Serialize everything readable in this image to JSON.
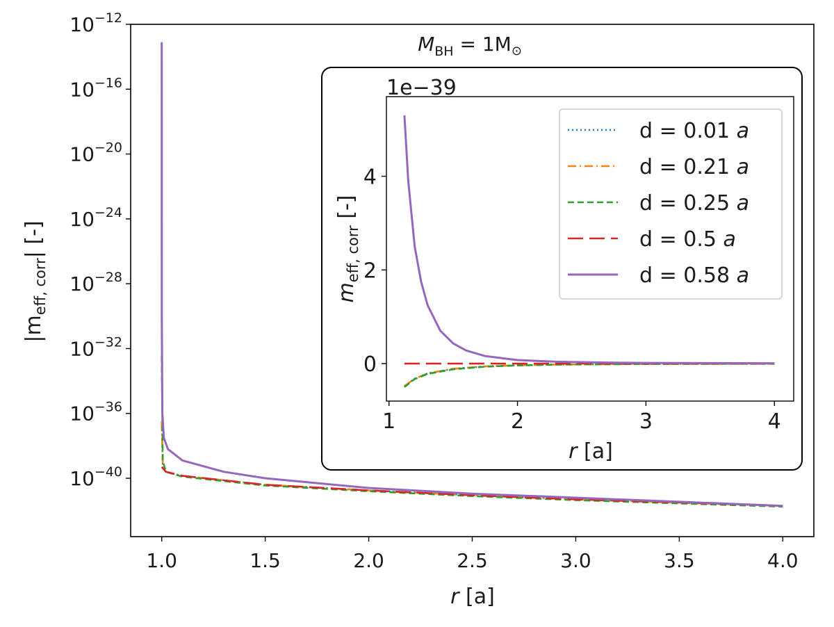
{
  "colors": {
    "blue": "#1f77b4",
    "orange": "#ff7f0e",
    "green": "#2ca02c",
    "red": "#d62728",
    "purple": "#9467bd",
    "axis": "#000000"
  },
  "chart_data": [
    {
      "id": "main",
      "type": "line",
      "title_prefix": "M",
      "title_sub": "BH",
      "title_rest": " = 1M",
      "title_sun": "⊙",
      "xlabel_var": "r",
      "xlabel_unit": " [a]",
      "ylabel_pre": "|m",
      "ylabel_sub": "eff, corr",
      "ylabel_post": "| [-]",
      "yscale": "log",
      "xlim": [
        0.85,
        4.15
      ],
      "ylim_log10": [
        -43.6,
        -12
      ],
      "xticks": [
        "1.0",
        "1.5",
        "2.0",
        "2.5",
        "3.0",
        "3.5",
        "4.0"
      ],
      "yticks": [
        {
          "base": "10",
          "exp": "−12",
          "log": -12
        },
        {
          "base": "10",
          "exp": "−16",
          "log": -16
        },
        {
          "base": "10",
          "exp": "−20",
          "log": -20
        },
        {
          "base": "10",
          "exp": "−24",
          "log": -24
        },
        {
          "base": "10",
          "exp": "−28",
          "log": -28
        },
        {
          "base": "10",
          "exp": "−32",
          "log": -32
        },
        {
          "base": "10",
          "exp": "−36",
          "log": -36
        },
        {
          "base": "10",
          "exp": "−40",
          "log": -40
        }
      ],
      "series": [
        {
          "name": "d = 0.01 a",
          "style": "dotted",
          "color": "#1f77b4",
          "x": [
            1.0,
            1.005,
            1.02,
            1.1,
            1.5,
            2.0,
            2.5,
            3.0,
            3.5,
            4.0
          ],
          "log10y": [
            -36.5,
            -39.2,
            -39.6,
            -39.85,
            -40.4,
            -40.75,
            -41.05,
            -41.3,
            -41.5,
            -41.7
          ]
        },
        {
          "name": "d = 0.21 a",
          "style": "dashdot",
          "color": "#ff7f0e",
          "x": [
            1.0,
            1.005,
            1.02,
            1.1,
            1.5,
            2.0,
            2.5,
            3.0,
            3.5,
            4.0
          ],
          "log10y": [
            -36.5,
            -39.2,
            -39.6,
            -39.85,
            -40.4,
            -40.75,
            -41.05,
            -41.3,
            -41.5,
            -41.7
          ]
        },
        {
          "name": "d = 0.25 a",
          "style": "dashed",
          "color": "#2ca02c",
          "x": [
            1.0,
            1.005,
            1.02,
            1.1,
            1.5,
            2.0,
            2.5,
            3.0,
            3.5,
            4.0
          ],
          "log10y": [
            -32.5,
            -38.9,
            -39.6,
            -39.9,
            -40.45,
            -40.8,
            -41.1,
            -41.35,
            -41.55,
            -41.75
          ]
        },
        {
          "name": "d = 0.5 a",
          "style": "longdash",
          "color": "#d62728",
          "x": [
            1.0,
            1.02,
            1.1,
            1.5,
            2.0,
            2.5,
            3.0,
            3.5,
            4.0
          ],
          "log10y": [
            -39.3,
            -39.6,
            -39.85,
            -40.4,
            -40.75,
            -41.05,
            -41.3,
            -41.5,
            -41.7
          ]
        },
        {
          "name": "d = 0.58 a",
          "style": "solid",
          "color": "#9467bd",
          "x": [
            1.0,
            1.0005,
            1.003,
            1.01,
            1.03,
            1.1,
            1.3,
            1.5,
            2.0,
            2.5,
            3.0,
            3.5,
            4.0
          ],
          "log10y": [
            -13.1,
            -30.0,
            -36.0,
            -37.5,
            -38.2,
            -38.9,
            -39.6,
            -40.0,
            -40.6,
            -40.95,
            -41.2,
            -41.45,
            -41.7
          ]
        }
      ]
    },
    {
      "id": "inset",
      "type": "line",
      "offset_text": "1e−39",
      "xlabel_var": "r",
      "xlabel_unit": " [a]",
      "ylabel_var": "m",
      "ylabel_sub": "eff, corr",
      "ylabel_unit": " [-]",
      "xlim": [
        0.98,
        4.15
      ],
      "ylim": [
        -0.8,
        5.7
      ],
      "xticks": [
        1,
        2,
        3,
        4
      ],
      "yticks": [
        0,
        2,
        4
      ],
      "legend_position": "top-right",
      "legend": [
        {
          "var": "d = 0.01 ",
          "unit": "a",
          "style": "dotted",
          "color": "#1f77b4"
        },
        {
          "var": "d = 0.21 ",
          "unit": "a",
          "style": "dashdot",
          "color": "#ff7f0e"
        },
        {
          "var": "d = 0.25 ",
          "unit": "a",
          "style": "dashed",
          "color": "#2ca02c"
        },
        {
          "var": "d = 0.5 ",
          "unit": "a",
          "style": "longdash",
          "color": "#d62728"
        },
        {
          "var": "d = 0.58 ",
          "unit": "a",
          "style": "solid",
          "color": "#9467bd"
        }
      ],
      "series": [
        {
          "name": "d = 0.01 a",
          "style": "dotted",
          "color": "#1f77b4",
          "x": [
            1.12,
            1.2,
            1.3,
            1.5,
            1.75,
            2.0,
            2.3,
            2.7,
            3.0,
            3.5,
            4.0
          ],
          "y": [
            -0.48,
            -0.32,
            -0.21,
            -0.11,
            -0.06,
            -0.035,
            -0.02,
            -0.012,
            -0.008,
            -0.005,
            -0.003
          ]
        },
        {
          "name": "d = 0.21 a",
          "style": "dashdot",
          "color": "#ff7f0e",
          "x": [
            1.12,
            1.2,
            1.3,
            1.5,
            1.75,
            2.0,
            2.3,
            2.7,
            3.0,
            3.5,
            4.0
          ],
          "y": [
            -0.48,
            -0.32,
            -0.21,
            -0.11,
            -0.06,
            -0.035,
            -0.02,
            -0.012,
            -0.008,
            -0.005,
            -0.003
          ]
        },
        {
          "name": "d = 0.25 a",
          "style": "dashed",
          "color": "#2ca02c",
          "x": [
            1.12,
            1.2,
            1.3,
            1.5,
            1.75,
            2.0,
            2.3,
            2.7,
            3.0,
            3.5,
            4.0
          ],
          "y": [
            -0.5,
            -0.33,
            -0.22,
            -0.12,
            -0.065,
            -0.038,
            -0.022,
            -0.013,
            -0.009,
            -0.005,
            -0.003
          ]
        },
        {
          "name": "d = 0.5 a",
          "style": "longdash",
          "color": "#d62728",
          "x": [
            1.12,
            2.0,
            3.0,
            4.0
          ],
          "y": [
            0.0,
            0.0,
            0.0,
            0.0
          ]
        },
        {
          "name": "d = 0.58 a",
          "style": "solid",
          "color": "#9467bd",
          "x": [
            1.12,
            1.15,
            1.2,
            1.25,
            1.3,
            1.4,
            1.5,
            1.6,
            1.75,
            2.0,
            2.3,
            2.7,
            3.0,
            3.5,
            4.0
          ],
          "y": [
            5.3,
            3.9,
            2.5,
            1.75,
            1.25,
            0.7,
            0.43,
            0.28,
            0.16,
            0.075,
            0.04,
            0.022,
            0.015,
            0.01,
            0.007
          ]
        }
      ]
    }
  ]
}
